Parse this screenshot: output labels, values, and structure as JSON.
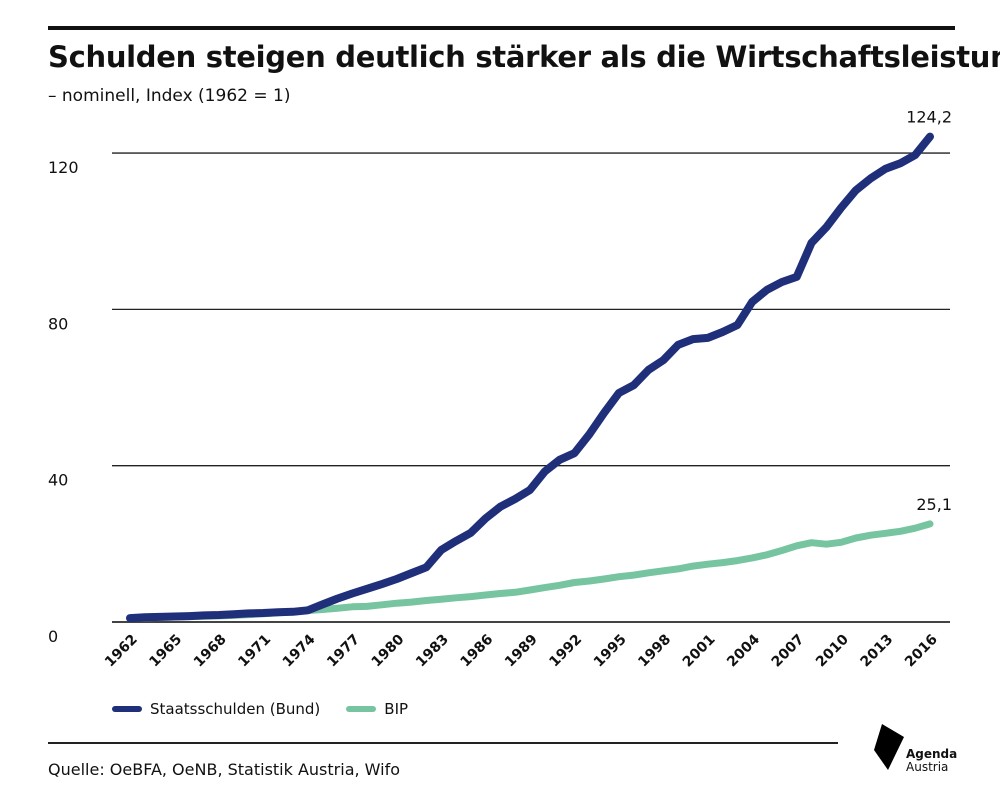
{
  "title": "Schulden steigen deutlich stärker als die Wirtschaftsleistung",
  "subtitle": "– nominell, Index (1962 = 1)",
  "source": "Quelle: OeBFA, OeNB, Statistik Austria, Wifo",
  "logo": {
    "line1": "Agenda",
    "line2": "Austria"
  },
  "chart_data": {
    "type": "line",
    "title": "Schulden steigen deutlich stärker als die Wirtschaftsleistung",
    "subtitle": "– nominell, Index (1962 = 1)",
    "xlabel": "",
    "ylabel": "",
    "xlim": [
      1962,
      2016
    ],
    "ylim": [
      0,
      124.2
    ],
    "yticks": [
      0,
      40,
      80,
      120
    ],
    "xticks": [
      1962,
      1965,
      1968,
      1971,
      1974,
      1977,
      1980,
      1983,
      1986,
      1989,
      1992,
      1995,
      1998,
      2001,
      2004,
      2007,
      2010,
      2013,
      2016
    ],
    "grid": "horizontal",
    "legend_placement": "bottom-left",
    "x": [
      1962,
      1963,
      1964,
      1965,
      1966,
      1967,
      1968,
      1969,
      1970,
      1971,
      1972,
      1973,
      1974,
      1975,
      1976,
      1977,
      1978,
      1979,
      1980,
      1981,
      1982,
      1983,
      1984,
      1985,
      1986,
      1987,
      1988,
      1989,
      1990,
      1991,
      1992,
      1993,
      1994,
      1995,
      1996,
      1997,
      1998,
      1999,
      2000,
      2001,
      2002,
      2003,
      2004,
      2005,
      2006,
      2007,
      2008,
      2009,
      2010,
      2011,
      2012,
      2013,
      2014,
      2015,
      2016
    ],
    "series": [
      {
        "name": "Staatsschulden (Bund)",
        "color": "#1f2f7a",
        "end_label": "124,2",
        "values": [
          1,
          1.2,
          1.3,
          1.4,
          1.5,
          1.7,
          1.8,
          2.0,
          2.2,
          2.3,
          2.5,
          2.6,
          3.0,
          4.5,
          6.0,
          7.3,
          8.5,
          9.7,
          11,
          12.5,
          14,
          18.4,
          20.7,
          22.8,
          26.5,
          29.5,
          31.5,
          33.8,
          38.5,
          41.5,
          43.2,
          48,
          53.5,
          58.6,
          60.6,
          64.5,
          67,
          70.9,
          72.4,
          72.7,
          74.2,
          76,
          81.9,
          85,
          87,
          88.3,
          97,
          101,
          106,
          110.5,
          113.5,
          116,
          117.4,
          119.5,
          124.2
        ]
      },
      {
        "name": "BIP",
        "color": "#76c4a0",
        "end_label": "25,1",
        "values": [
          1,
          1.08,
          1.17,
          1.28,
          1.38,
          1.47,
          1.56,
          1.7,
          1.9,
          2.1,
          2.35,
          2.6,
          2.95,
          3.2,
          3.5,
          3.9,
          4.0,
          4.4,
          4.8,
          5.1,
          5.5,
          5.8,
          6.2,
          6.5,
          6.9,
          7.3,
          7.6,
          8.2,
          8.8,
          9.4,
          10.1,
          10.5,
          11.0,
          11.6,
          12.0,
          12.6,
          13.1,
          13.6,
          14.3,
          14.8,
          15.2,
          15.7,
          16.4,
          17.2,
          18.3,
          19.5,
          20.3,
          19.9,
          20.4,
          21.5,
          22.2,
          22.7,
          23.2,
          24.0,
          25.1
        ]
      }
    ]
  }
}
